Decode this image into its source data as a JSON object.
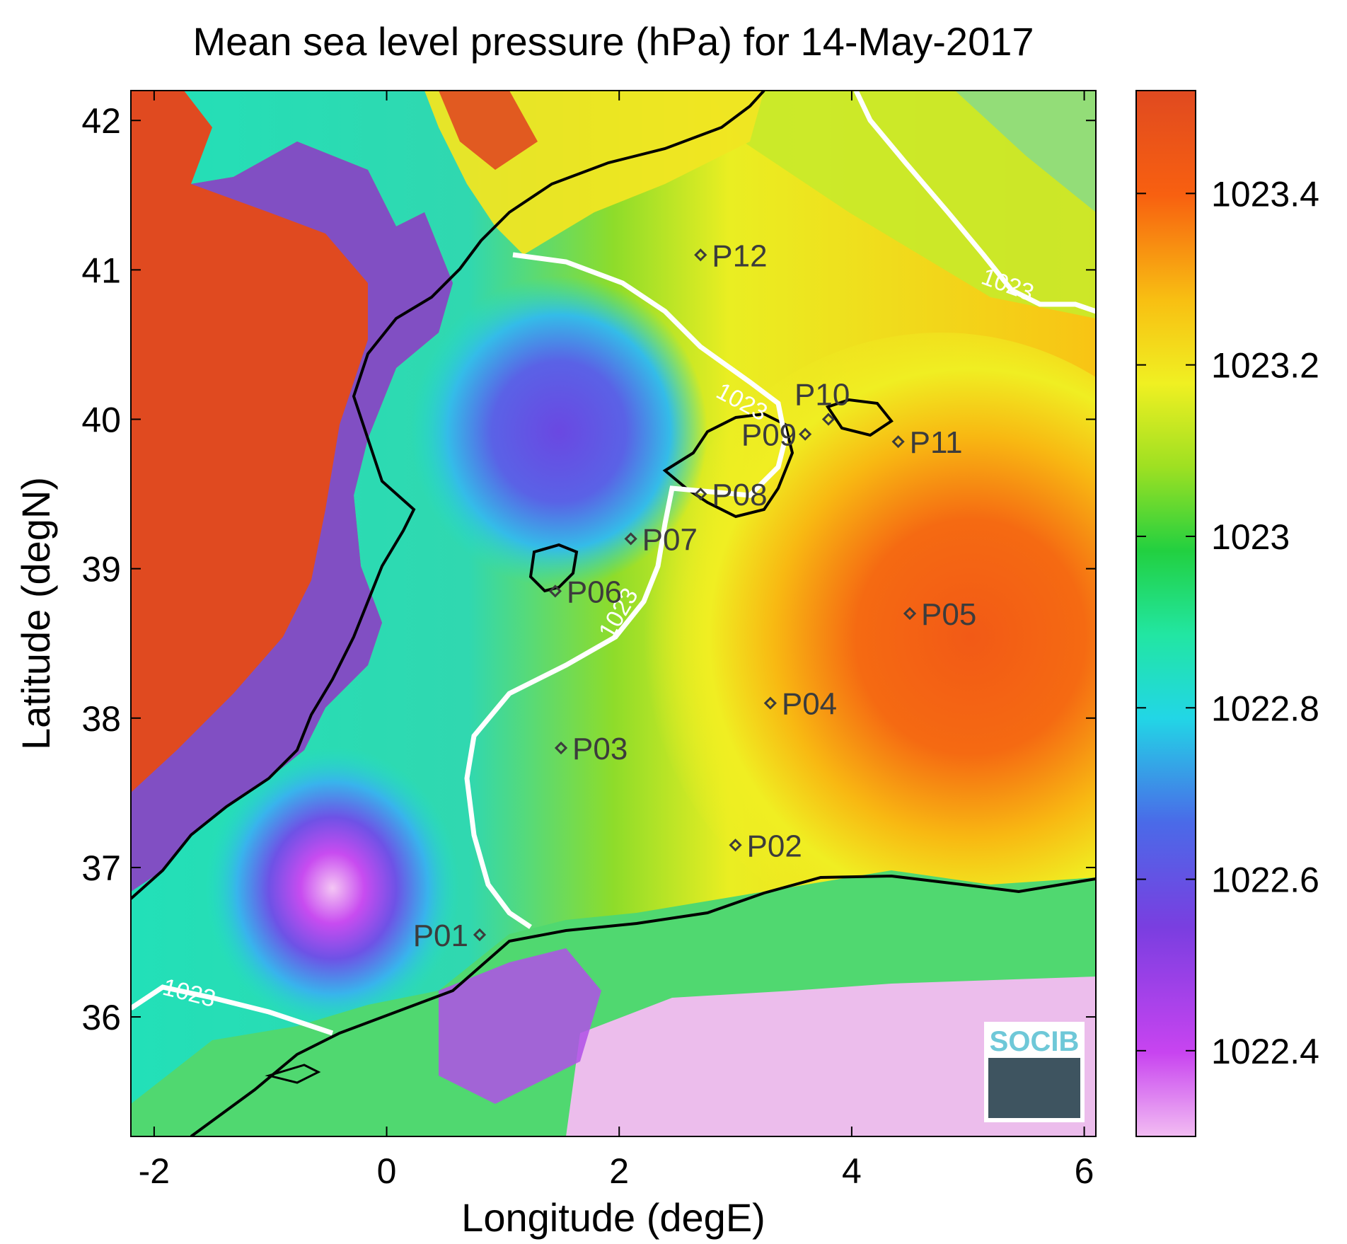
{
  "title": "Mean sea level pressure (hPa) for 14-May-2017",
  "map": {
    "xlabel": "Longitude (degE)",
    "ylabel": "Latitude (degN)",
    "xlim": [
      -2.2,
      6.1
    ],
    "ylim": [
      35.2,
      42.2
    ],
    "x_ticks": [
      "-2",
      "0",
      "2",
      "4",
      "6"
    ],
    "x_tick_values": [
      -2,
      0,
      2,
      4,
      6
    ],
    "y_ticks": [
      "36",
      "37",
      "38",
      "39",
      "40",
      "41",
      "42"
    ],
    "y_tick_values": [
      36,
      37,
      38,
      39,
      40,
      41,
      42
    ],
    "points": [
      {
        "label": "P01",
        "lon": 0.8,
        "lat": 36.55
      },
      {
        "label": "P02",
        "lon": 3.0,
        "lat": 37.15
      },
      {
        "label": "P03",
        "lon": 1.5,
        "lat": 37.8
      },
      {
        "label": "P04",
        "lon": 3.3,
        "lat": 38.1
      },
      {
        "label": "P05",
        "lon": 4.5,
        "lat": 38.7
      },
      {
        "label": "P06",
        "lon": 1.45,
        "lat": 38.85
      },
      {
        "label": "P07",
        "lon": 2.1,
        "lat": 39.2
      },
      {
        "label": "P08",
        "lon": 2.7,
        "lat": 39.5
      },
      {
        "label": "P09",
        "lon": 3.6,
        "lat": 39.9
      },
      {
        "label": "P10",
        "lon": 3.8,
        "lat": 40.0
      },
      {
        "label": "P11",
        "lon": 4.4,
        "lat": 39.85
      },
      {
        "label": "P12",
        "lon": 2.7,
        "lat": 41.1
      }
    ],
    "contour_label": "1023",
    "logo_text": "SOCIB",
    "coastline_color": "#000000",
    "contour_color": "#ffffff"
  },
  "colorbar": {
    "ticks": [
      "1023.4",
      "1023.2",
      "1023",
      "1022.8",
      "1022.6",
      "1022.4"
    ],
    "tick_values": [
      1023.4,
      1023.2,
      1023.0,
      1022.8,
      1022.6,
      1022.4
    ],
    "range": [
      1022.3,
      1023.52
    ],
    "colors": [
      "#f0b8f0",
      "#c040f0",
      "#7040e0",
      "#4060e8",
      "#20d8e0",
      "#20e8a0",
      "#20d040",
      "#a0e020",
      "#f0f020",
      "#f8c010",
      "#f86010",
      "#e04a20"
    ]
  }
}
